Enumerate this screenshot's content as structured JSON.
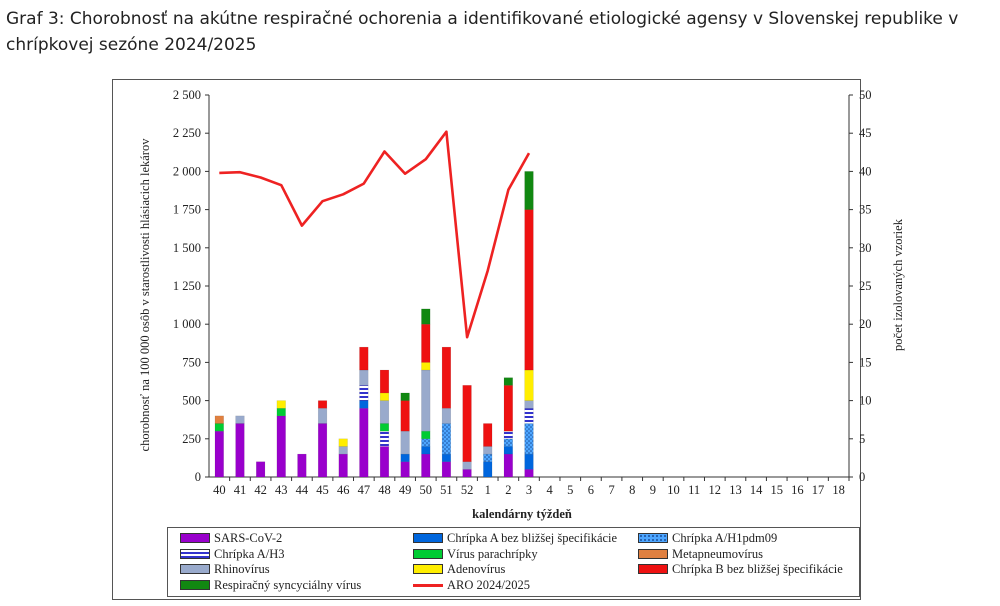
{
  "caption": "Graf 3: Chorobnosť na akútne respiračné ochorenia a identifikované etiologické agensy v Slovenskej republike v chrípkovej sezóne 2024/2025",
  "chart_data": {
    "type": "bar",
    "stacked": true,
    "xlabel": "kalendárny týždeň",
    "ylabel": "chorobnosť na 100 000 osôb v starostlivosti hlásiacich lekárov",
    "y2label": "počet izolovaných vzoriek",
    "ylim": [
      0,
      2500
    ],
    "y2lim": [
      0,
      50
    ],
    "yticks": [
      "0",
      "250",
      "500",
      "750",
      "1 000",
      "1 250",
      "1 500",
      "1 750",
      "2 000",
      "2 250",
      "2 500"
    ],
    "y2ticks": [
      "0",
      "5",
      "10",
      "15",
      "20",
      "25",
      "30",
      "35",
      "40",
      "45",
      "50"
    ],
    "categories": [
      "40",
      "41",
      "42",
      "43",
      "44",
      "45",
      "46",
      "47",
      "48",
      "49",
      "50",
      "51",
      "52",
      "1",
      "2",
      "3",
      "4",
      "5",
      "6",
      "7",
      "8",
      "9",
      "10",
      "11",
      "12",
      "13",
      "14",
      "15",
      "16",
      "17",
      "18"
    ],
    "series": [
      {
        "name": "SARS-CoV-2",
        "axis": "right",
        "color": "#9900cc",
        "values": [
          6,
          7,
          2,
          8,
          3,
          7,
          3,
          9,
          4,
          2,
          3,
          2,
          1,
          0,
          3,
          1,
          0,
          0,
          0,
          0,
          0,
          0,
          0,
          0,
          0,
          0,
          0,
          0,
          0,
          0,
          0
        ]
      },
      {
        "name": "Chrípka A bez bližšej špecifikácie",
        "axis": "right",
        "color": "#0066dd",
        "values": [
          0,
          0,
          0,
          0,
          0,
          0,
          0,
          1,
          0,
          1,
          1,
          1,
          0,
          2,
          1,
          2,
          0,
          0,
          0,
          0,
          0,
          0,
          0,
          0,
          0,
          0,
          0,
          0,
          0,
          0,
          0
        ]
      },
      {
        "name": "Chrípka A/H1pdm09",
        "axis": "right",
        "color": "#4da6ff",
        "values": [
          0,
          0,
          0,
          0,
          0,
          0,
          0,
          0,
          0,
          0,
          1,
          4,
          0,
          1,
          1,
          4,
          0,
          0,
          0,
          0,
          0,
          0,
          0,
          0,
          0,
          0,
          0,
          0,
          0,
          0,
          0
        ]
      },
      {
        "name": "Chrípka A/H3",
        "axis": "right",
        "color": "#3333cc",
        "values": [
          0,
          0,
          0,
          0,
          0,
          0,
          0,
          2,
          2,
          0,
          0,
          0,
          0,
          0,
          1,
          2,
          0,
          0,
          0,
          0,
          0,
          0,
          0,
          0,
          0,
          0,
          0,
          0,
          0,
          0,
          0
        ]
      },
      {
        "name": "Vírus parachrípky",
        "axis": "right",
        "color": "#00cc33",
        "values": [
          1,
          0,
          0,
          1,
          0,
          0,
          0,
          0,
          1,
          0,
          1,
          0,
          0,
          0,
          0,
          0,
          0,
          0,
          0,
          0,
          0,
          0,
          0,
          0,
          0,
          0,
          0,
          0,
          0,
          0,
          0
        ]
      },
      {
        "name": "Metapneumovírus",
        "axis": "right",
        "color": "#e08040",
        "values": [
          1,
          0,
          0,
          0,
          0,
          0,
          0,
          0,
          0,
          0,
          0,
          0,
          0,
          0,
          0,
          0,
          0,
          0,
          0,
          0,
          0,
          0,
          0,
          0,
          0,
          0,
          0,
          0,
          0,
          0,
          0
        ]
      },
      {
        "name": "Rhinovírus",
        "axis": "right",
        "color": "#99aacc",
        "values": [
          0,
          1,
          0,
          0,
          0,
          2,
          1,
          2,
          3,
          3,
          8,
          2,
          1,
          1,
          0,
          1,
          0,
          0,
          0,
          0,
          0,
          0,
          0,
          0,
          0,
          0,
          0,
          0,
          0,
          0,
          0
        ]
      },
      {
        "name": "Adenovírus",
        "axis": "right",
        "color": "#ffee00",
        "values": [
          0,
          0,
          0,
          1,
          0,
          0,
          1,
          0,
          1,
          0,
          1,
          0,
          0,
          0,
          0,
          4,
          0,
          0,
          0,
          0,
          0,
          0,
          0,
          0,
          0,
          0,
          0,
          0,
          0,
          0,
          0
        ]
      },
      {
        "name": "Chrípka B bez bližšej špecifikácie",
        "axis": "right",
        "color": "#ee1111",
        "values": [
          0,
          0,
          0,
          0,
          0,
          1,
          0,
          3,
          3,
          4,
          5,
          8,
          10,
          3,
          6,
          21,
          0,
          0,
          0,
          0,
          0,
          0,
          0,
          0,
          0,
          0,
          0,
          0,
          0,
          0,
          0
        ]
      },
      {
        "name": "Respiračný syncyciálny vírus",
        "axis": "right",
        "color": "#118811",
        "values": [
          0,
          0,
          0,
          0,
          0,
          0,
          0,
          0,
          0,
          1,
          2,
          0,
          0,
          0,
          1,
          5,
          0,
          0,
          0,
          0,
          0,
          0,
          0,
          0,
          0,
          0,
          0,
          0,
          0,
          0,
          0
        ]
      }
    ],
    "line": {
      "name": "ARO 2024/2025",
      "axis": "left",
      "color": "#ee2222",
      "values": [
        1990,
        1995,
        1960,
        1910,
        1645,
        1805,
        1850,
        1920,
        2130,
        1985,
        2080,
        2260,
        915,
        1350,
        1880,
        2120
      ]
    },
    "legend_placement": "bottom",
    "grid": false
  },
  "legend": [
    {
      "label": "SARS-CoV-2",
      "color": "#9900cc",
      "kind": "box",
      "pattern": ""
    },
    {
      "label": "Chrípka A bez bližšej špecifikácie",
      "color": "#0066dd",
      "kind": "box",
      "pattern": ""
    },
    {
      "label": "Chrípka A/H1pdm09",
      "color": "#4da6ff",
      "kind": "box",
      "pattern": "dots"
    },
    {
      "label": "Chrípka A/H3",
      "color": "#3333cc",
      "kind": "box",
      "pattern": "stripes"
    },
    {
      "label": "Vírus parachrípky",
      "color": "#00cc33",
      "kind": "box",
      "pattern": ""
    },
    {
      "label": "Metapneumovírus",
      "color": "#e08040",
      "kind": "box",
      "pattern": ""
    },
    {
      "label": "Rhinovírus",
      "color": "#99aacc",
      "kind": "box",
      "pattern": ""
    },
    {
      "label": "Adenovírus",
      "color": "#ffee00",
      "kind": "box",
      "pattern": ""
    },
    {
      "label": "Chrípka B bez bližšej špecifikácie",
      "color": "#ee1111",
      "kind": "box",
      "pattern": ""
    },
    {
      "label": "Respiračný syncyciálny vírus",
      "color": "#118811",
      "kind": "box",
      "pattern": ""
    },
    {
      "label": "ARO 2024/2025",
      "color": "#ee2222",
      "kind": "line",
      "pattern": ""
    }
  ]
}
